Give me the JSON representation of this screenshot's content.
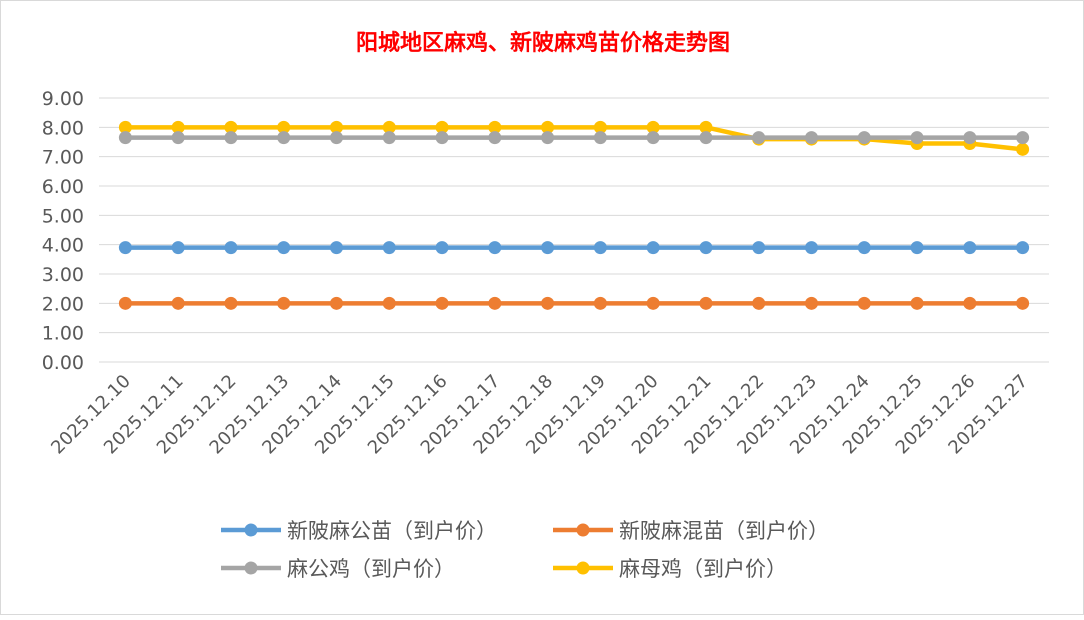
{
  "chart_data": {
    "type": "line",
    "title": "阳城地区麻鸡、新陂麻鸡苗价格走势图",
    "title_color": "#ff0000",
    "xlabel": "",
    "ylabel": "",
    "ylim": [
      0,
      9
    ],
    "y_ticks": [
      "0.00",
      "1.00",
      "2.00",
      "3.00",
      "4.00",
      "5.00",
      "6.00",
      "7.00",
      "8.00",
      "9.00"
    ],
    "grid": true,
    "legend_position": "bottom",
    "categories": [
      "2025.12.10",
      "2025.12.11",
      "2025.12.12",
      "2025.12.13",
      "2025.12.14",
      "2025.12.15",
      "2025.12.16",
      "2025.12.17",
      "2025.12.18",
      "2025.12.19",
      "2025.12.20",
      "2025.12.21",
      "2025.12.22",
      "2025.12.23",
      "2025.12.24",
      "2025.12.25",
      "2025.12.26",
      "2025.12.27"
    ],
    "series": [
      {
        "name": "新陂麻公苗（到户价）",
        "color": "#5b9bd5",
        "values": [
          3.9,
          3.9,
          3.9,
          3.9,
          3.9,
          3.9,
          3.9,
          3.9,
          3.9,
          3.9,
          3.9,
          3.9,
          3.9,
          3.9,
          3.9,
          3.9,
          3.9,
          3.9
        ]
      },
      {
        "name": "新陂麻混苗（到户价）",
        "color": "#ed7d31",
        "values": [
          2.0,
          2.0,
          2.0,
          2.0,
          2.0,
          2.0,
          2.0,
          2.0,
          2.0,
          2.0,
          2.0,
          2.0,
          2.0,
          2.0,
          2.0,
          2.0,
          2.0,
          2.0
        ]
      },
      {
        "name": "麻公鸡（到户价）",
        "color": "#a5a5a5",
        "values": [
          7.65,
          7.65,
          7.65,
          7.65,
          7.65,
          7.65,
          7.65,
          7.65,
          7.65,
          7.65,
          7.65,
          7.65,
          7.65,
          7.65,
          7.65,
          7.65,
          7.65,
          7.65
        ]
      },
      {
        "name": "麻母鸡（到户价）",
        "color": "#ffc000",
        "values": [
          8.0,
          8.0,
          8.0,
          8.0,
          8.0,
          8.0,
          8.0,
          8.0,
          8.0,
          8.0,
          8.0,
          8.0,
          7.6,
          7.6,
          7.6,
          7.45,
          7.45,
          7.25
        ]
      }
    ]
  }
}
